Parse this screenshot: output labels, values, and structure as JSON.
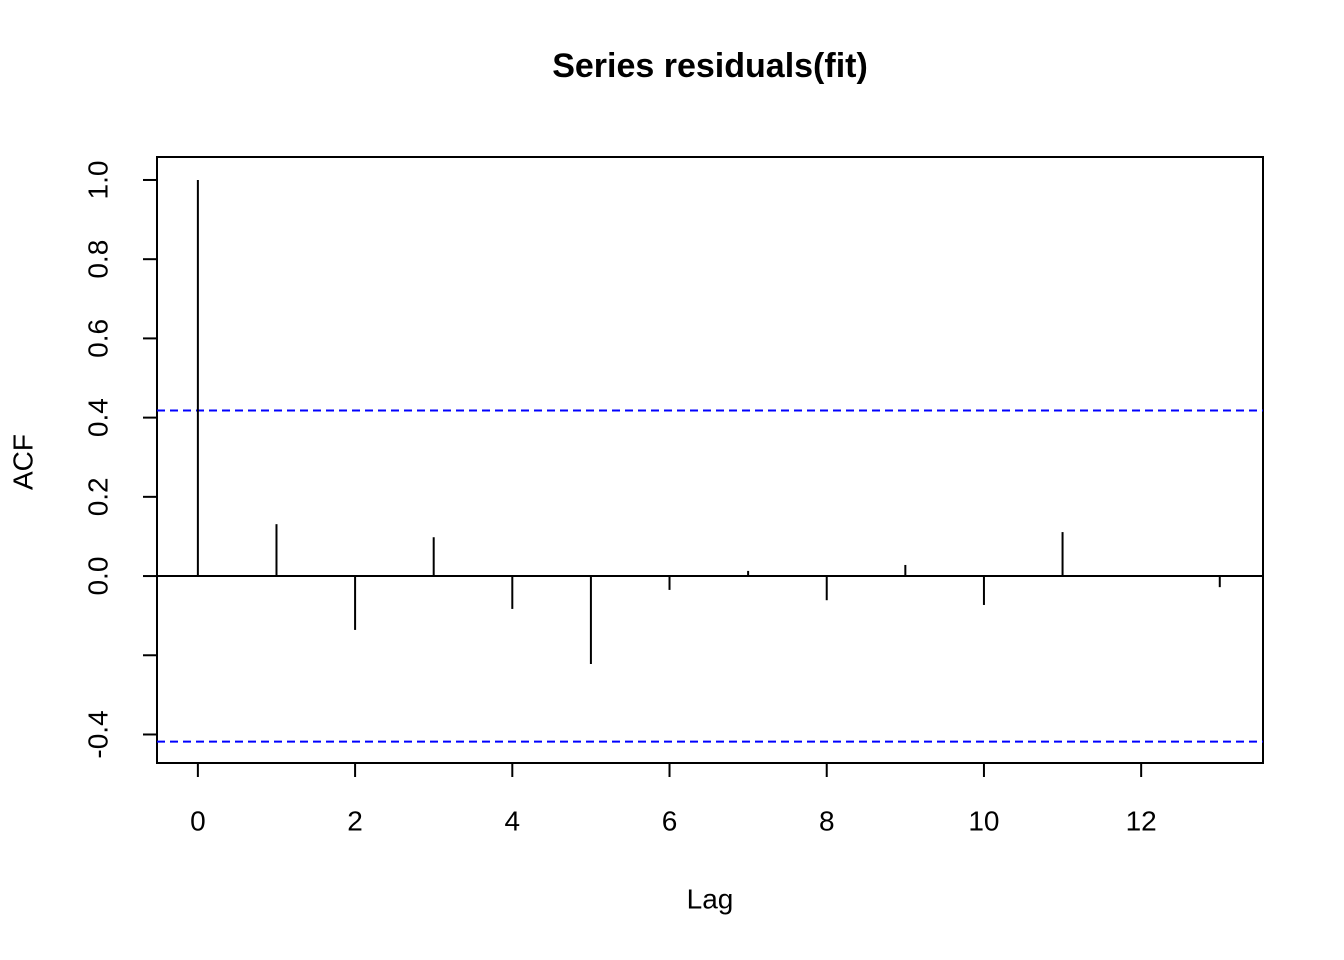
{
  "chart_data": {
    "type": "acf",
    "title": "Series  residuals(fit)",
    "x_label": "Lag",
    "y_label": "ACF",
    "x": [
      0,
      1,
      2,
      3,
      4,
      5,
      6,
      7,
      8,
      9,
      10,
      11,
      12,
      13
    ],
    "values": [
      1.0,
      0.131,
      -0.136,
      0.098,
      -0.083,
      -0.222,
      -0.035,
      0.013,
      -0.061,
      0.028,
      -0.073,
      0.111,
      0.002,
      -0.028
    ],
    "color": "#000000",
    "xlim": [
      -0.52,
      13.55
    ],
    "ylim": [
      -0.472,
      1.058
    ],
    "xticks": [
      0,
      2,
      4,
      6,
      8,
      10,
      12
    ],
    "yticks": [
      {
        "value": -0.4,
        "label": "-0.4"
      },
      {
        "value": -0.2,
        "label": null
      },
      {
        "value": 0,
        "label": "0.0"
      },
      {
        "value": 0.2,
        "label": "0.2"
      },
      {
        "value": 0.4,
        "label": "0.4"
      },
      {
        "value": 0.6,
        "label": "0.6"
      },
      {
        "value": 0.8,
        "label": "0.8"
      },
      {
        "value": 1,
        "label": "1.0"
      }
    ],
    "ci_lines": {
      "values": [
        0.418,
        -0.418
      ],
      "color": "#0000ff"
    }
  }
}
